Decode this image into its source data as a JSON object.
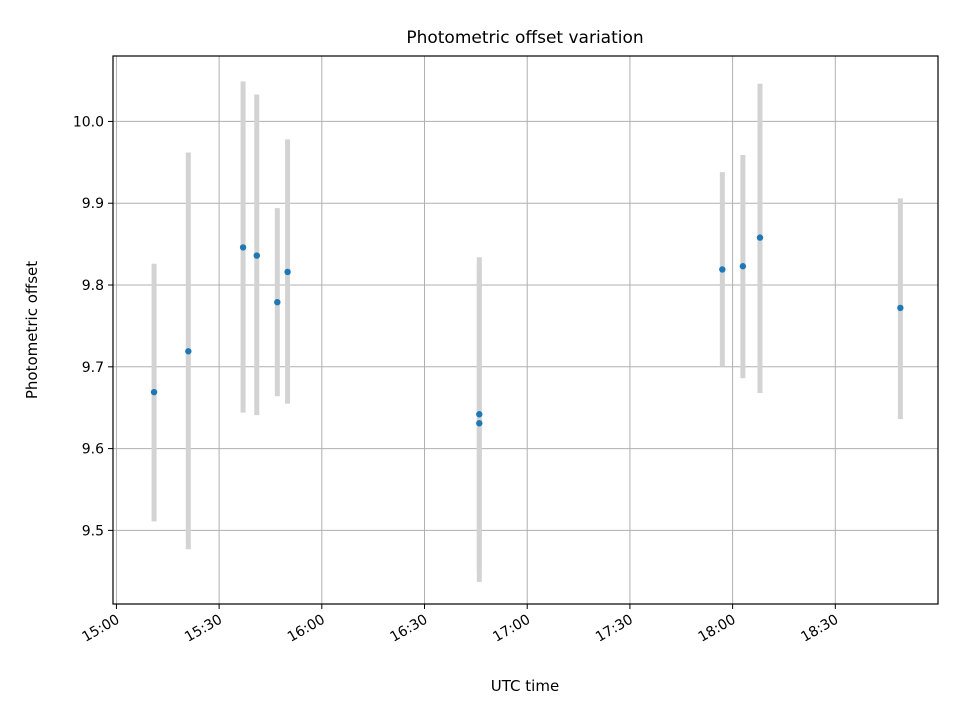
{
  "chart_data": {
    "type": "scatter",
    "title": "Photometric offset variation",
    "xlabel": "UTC time",
    "ylabel": "Photometric offset",
    "x_axis_kind": "time",
    "xlim": [
      "14:59",
      "19:00"
    ],
    "ylim": [
      9.41,
      10.08
    ],
    "x_ticks": [
      "15:00",
      "15:30",
      "16:00",
      "16:30",
      "17:00",
      "17:30",
      "18:00",
      "18:30"
    ],
    "y_ticks": [
      9.5,
      9.6,
      9.7,
      9.8,
      9.9,
      10.0
    ],
    "y_tick_labels": [
      "9.5",
      "9.6",
      "9.7",
      "9.8",
      "9.9",
      "10.0"
    ],
    "grid": true,
    "legend": "none",
    "colors": {
      "point": "#1f77b4",
      "errorbar": "#d3d3d3",
      "grid": "#b0b0b0"
    },
    "series": [
      {
        "points": [
          {
            "time": "15:11",
            "y": 9.669,
            "ylow": 9.511,
            "yhigh": 9.826
          },
          {
            "time": "15:21",
            "y": 9.719,
            "ylow": 9.477,
            "yhigh": 9.962
          },
          {
            "time": "15:37",
            "y": 9.846,
            "ylow": 9.644,
            "yhigh": 10.049
          },
          {
            "time": "15:41",
            "y": 9.836,
            "ylow": 9.641,
            "yhigh": 10.033
          },
          {
            "time": "15:47",
            "y": 9.779,
            "ylow": 9.664,
            "yhigh": 9.894
          },
          {
            "time": "15:50",
            "y": 9.816,
            "ylow": 9.655,
            "yhigh": 9.978
          },
          {
            "time": "16:46",
            "y": 9.642,
            "ylow": 9.452,
            "yhigh": 9.834
          },
          {
            "time": "16:46",
            "y": 9.631,
            "ylow": 9.437,
            "yhigh": 9.824
          },
          {
            "time": "17:57",
            "y": 9.819,
            "ylow": 9.7,
            "yhigh": 9.938
          },
          {
            "time": "18:03",
            "y": 9.823,
            "ylow": 9.686,
            "yhigh": 9.959
          },
          {
            "time": "18:08",
            "y": 9.858,
            "ylow": 9.668,
            "yhigh": 10.046
          },
          {
            "time": "18:49",
            "y": 9.772,
            "ylow": 9.636,
            "yhigh": 9.906
          }
        ]
      }
    ]
  }
}
